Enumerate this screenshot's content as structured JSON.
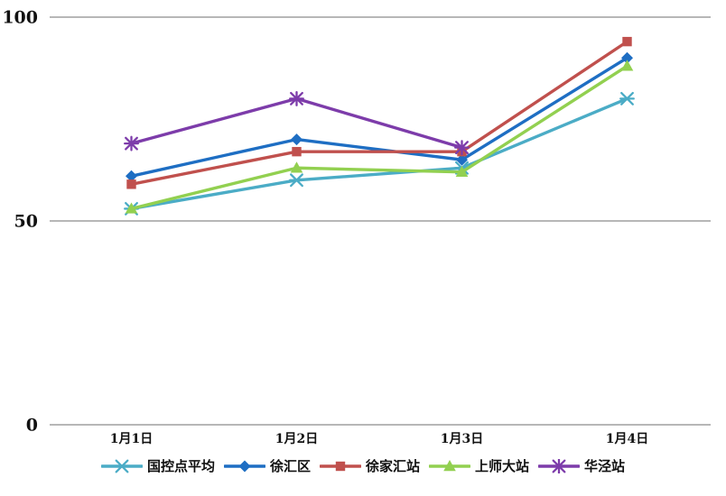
{
  "chart_data": {
    "type": "line",
    "title": "",
    "xlabel": "",
    "ylabel": "",
    "categories": [
      "1月1日",
      "1月2日",
      "1月3日",
      "1月4日"
    ],
    "series": [
      {
        "name": "国控点平均",
        "color": "#4BACC6",
        "marker": "x",
        "values": [
          53,
          60,
          63,
          80
        ]
      },
      {
        "name": "徐汇区",
        "color": "#1E6EC3",
        "marker": "diamond",
        "values": [
          61,
          70,
          65,
          90
        ]
      },
      {
        "name": "徐家汇站",
        "color": "#C0504D",
        "marker": "square",
        "values": [
          59,
          67,
          67,
          94
        ]
      },
      {
        "name": "上师大站",
        "color": "#92D050",
        "marker": "triangle",
        "values": [
          53,
          63,
          62,
          88
        ]
      },
      {
        "name": "华泾站",
        "color": "#7D3CAA",
        "marker": "star",
        "values": [
          69,
          80,
          68,
          null
        ]
      }
    ],
    "ylim": [
      0,
      100
    ],
    "yticks": [
      0,
      50,
      100
    ],
    "ytick_labels": [
      "0",
      "50",
      "100"
    ],
    "grid": true,
    "gridline_color": "#8C8C8C",
    "legend_position": "bottom"
  }
}
